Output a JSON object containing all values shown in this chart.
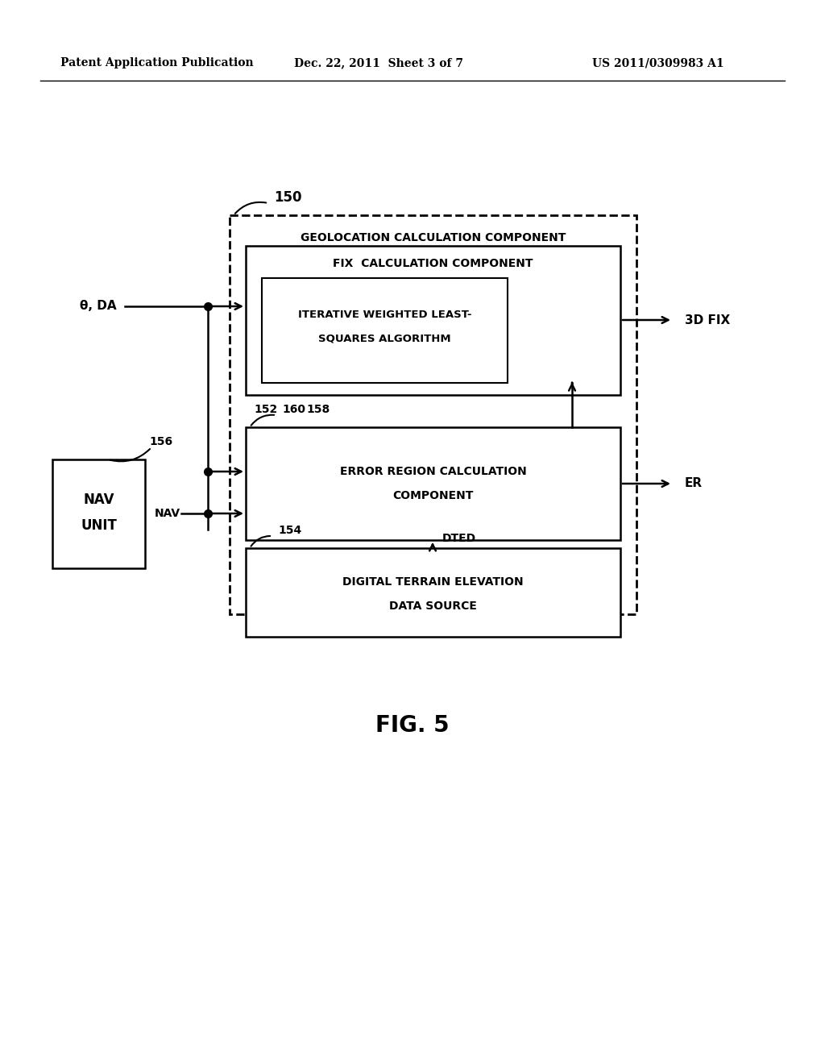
{
  "bg_color": "#ffffff",
  "text_color": "#000000",
  "header_left": "Patent Application Publication",
  "header_mid": "Dec. 22, 2011  Sheet 3 of 7",
  "header_right": "US 2011/0309983 A1",
  "fig_label": "FIG. 5",
  "outer_box_label": "150",
  "outer_box_title": "GEOLOCATION CALCULATION COMPONENT",
  "fix_box_label": "152",
  "fix_box_title": "FIX  CALCULATION COMPONENT",
  "iter_box_label": "158",
  "iter_box_title1": "ITERATIVE WEIGHTED LEAST-",
  "iter_box_title2": "SQUARES ALGORITHM",
  "error_box_label": "160",
  "error_box_title1": "ERROR REGION CALCULATION",
  "error_box_title2": "COMPONENT",
  "dted_label": "154",
  "dted_title1": "DIGITAL TERRAIN ELEVATION",
  "dted_title2": "DATA SOURCE",
  "nav_box_label": "156",
  "nav_box_title1": "NAV",
  "nav_box_title2": "UNIT",
  "input_label_theta": "θ, DA",
  "input_label_nav": "NAV",
  "output_label_fix": "3D FIX",
  "output_label_er": "ER",
  "dted_conn_label": "DTED"
}
